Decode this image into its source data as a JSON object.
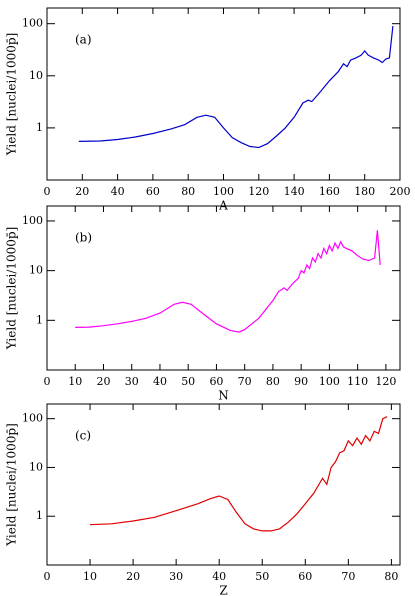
{
  "chart_data": [
    {
      "type": "line",
      "annotation": "(a)",
      "x_label": "A",
      "y_label": "Yield [nuclei/1000p̄]",
      "log_y": true,
      "xlim": [
        0,
        200
      ],
      "xticks": [
        0,
        20,
        40,
        60,
        80,
        100,
        120,
        140,
        160,
        180,
        200
      ],
      "ylim": [
        0.1,
        200
      ],
      "yticks": [
        1,
        10,
        100
      ],
      "series": [
        {
          "color": "#0000cc",
          "x": [
            18,
            30,
            40,
            50,
            60,
            70,
            78,
            85,
            90,
            95,
            100,
            105,
            110,
            115,
            120,
            125,
            130,
            135,
            140,
            145,
            148,
            150,
            155,
            160,
            165,
            168,
            170,
            172,
            175,
            178,
            180,
            182,
            185,
            188,
            190,
            192,
            194,
            196
          ],
          "values": [
            0.55,
            0.56,
            0.6,
            0.67,
            0.78,
            0.95,
            1.15,
            1.6,
            1.75,
            1.6,
            1.0,
            0.65,
            0.52,
            0.44,
            0.42,
            0.5,
            0.7,
            1.0,
            1.6,
            3.0,
            3.4,
            3.2,
            5,
            8,
            12,
            17,
            15,
            20,
            22,
            25,
            30,
            25,
            22,
            20,
            18,
            21,
            22,
            90
          ]
        }
      ]
    },
    {
      "type": "line",
      "annotation": "(b)",
      "x_label": "N",
      "y_label": "Yield [nuclei/1000p̄]",
      "log_y": true,
      "xlim": [
        0,
        125
      ],
      "xticks": [
        0,
        10,
        20,
        30,
        40,
        50,
        60,
        70,
        80,
        90,
        100,
        110,
        120
      ],
      "ylim": [
        0.1,
        200
      ],
      "yticks": [
        1,
        10,
        100
      ],
      "series": [
        {
          "color": "#ff00ff",
          "x": [
            10,
            15,
            20,
            25,
            30,
            35,
            40,
            45,
            48,
            51,
            55,
            60,
            65,
            68,
            70,
            75,
            80,
            82,
            84,
            85,
            87,
            89,
            90,
            91,
            92,
            93,
            94,
            95,
            96,
            97,
            98,
            99,
            100,
            101,
            102,
            103,
            104,
            105,
            106,
            108,
            110,
            112,
            114,
            116,
            117,
            118
          ],
          "values": [
            0.72,
            0.73,
            0.78,
            0.85,
            0.95,
            1.1,
            1.4,
            2.1,
            2.3,
            2.1,
            1.4,
            0.85,
            0.62,
            0.58,
            0.65,
            1.1,
            2.5,
            3.8,
            4.5,
            4,
            5.5,
            7,
            10,
            9,
            13,
            11,
            18,
            15,
            22,
            18,
            28,
            22,
            32,
            25,
            36,
            28,
            38,
            30,
            28,
            25,
            20,
            17,
            16,
            18,
            65,
            13
          ]
        }
      ]
    },
    {
      "type": "line",
      "annotation": "(c)",
      "x_label": "Z",
      "y_label": "Yield [nuclei/1000p̄]",
      "log_y": true,
      "xlim": [
        0,
        82
      ],
      "xticks": [
        0,
        10,
        20,
        30,
        40,
        50,
        60,
        70,
        80
      ],
      "ylim": [
        0.1,
        200
      ],
      "yticks": [
        1,
        10,
        100
      ],
      "series": [
        {
          "color": "#e00000",
          "x": [
            10,
            15,
            20,
            25,
            30,
            35,
            38,
            40,
            42,
            44,
            46,
            48,
            50,
            52,
            54,
            56,
            58,
            60,
            62,
            64,
            65,
            66,
            67,
            68,
            69,
            70,
            71,
            72,
            73,
            74,
            75,
            76,
            77,
            78,
            79
          ],
          "values": [
            0.67,
            0.7,
            0.8,
            0.95,
            1.3,
            1.8,
            2.3,
            2.6,
            2.2,
            1.2,
            0.7,
            0.55,
            0.5,
            0.5,
            0.55,
            0.75,
            1.1,
            1.8,
            3,
            6,
            4.5,
            10,
            13,
            20,
            22,
            35,
            28,
            40,
            30,
            45,
            35,
            55,
            50,
            100,
            110
          ]
        }
      ]
    }
  ]
}
